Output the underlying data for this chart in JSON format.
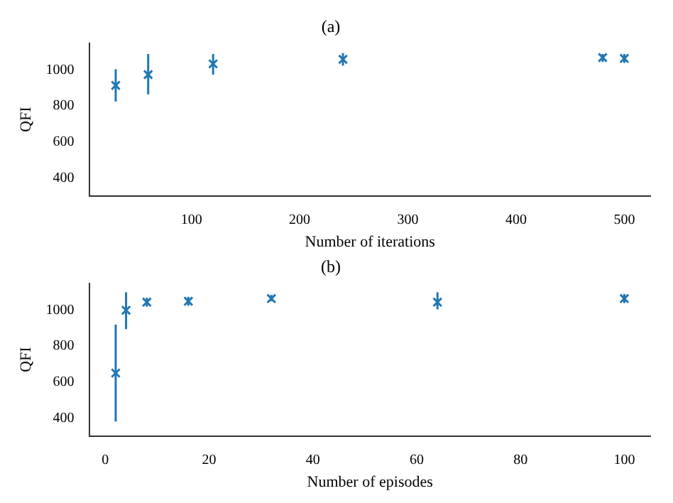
{
  "chart_data": [
    {
      "type": "scatter",
      "title": "(a)",
      "xlabel": "Number of iterations",
      "ylabel": "QFI",
      "series": [
        {
          "color": "#1f77b4",
          "x": [
            30,
            60,
            120,
            240,
            480,
            500
          ],
          "values": [
            915,
            975,
            1035,
            1060,
            1070,
            1065
          ],
          "errors": [
            [
              825,
              1005
            ],
            [
              865,
              1090
            ],
            [
              975,
              1090
            ],
            [
              1025,
              1095
            ],
            [
              1045,
              1090
            ],
            [
              1040,
              1090
            ]
          ]
        }
      ],
      "xlim": [
        6,
        524
      ],
      "xticks": [
        100,
        200,
        300,
        400,
        500
      ],
      "ylim": [
        300,
        1150
      ],
      "yticks": [
        400,
        600,
        800,
        1000
      ],
      "grid": false,
      "legend": false,
      "marker": "cross"
    },
    {
      "type": "scatter",
      "title": "(b)",
      "xlabel": "Number of episodes",
      "ylabel": "QFI",
      "series": [
        {
          "color": "#1f77b4",
          "x": [
            2,
            4,
            8,
            16,
            32,
            64,
            100
          ],
          "values": [
            650,
            1000,
            1045,
            1050,
            1065,
            1045,
            1065
          ],
          "errors": [
            [
              380,
              920
            ],
            [
              895,
              1100
            ],
            [
              1020,
              1070
            ],
            [
              1025,
              1075
            ],
            [
              1050,
              1085
            ],
            [
              1005,
              1100
            ],
            [
              1040,
              1090
            ]
          ]
        }
      ],
      "xlim": [
        -3,
        105
      ],
      "xticks": [
        0,
        20,
        40,
        60,
        80,
        100
      ],
      "ylim": [
        300,
        1150
      ],
      "yticks": [
        400,
        600,
        800,
        1000
      ],
      "grid": false,
      "legend": false,
      "marker": "cross"
    }
  ]
}
